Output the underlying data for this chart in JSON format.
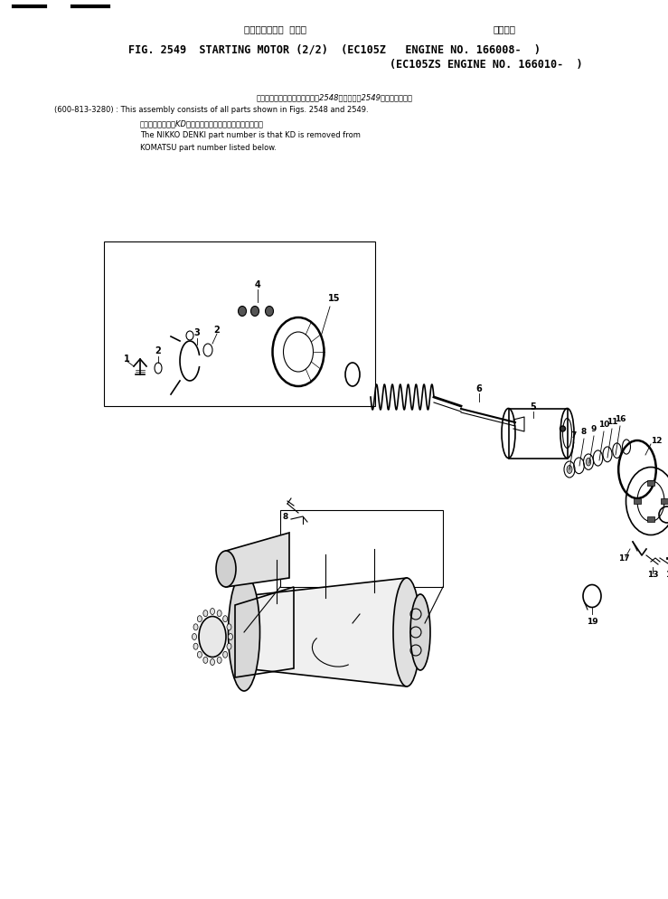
{
  "title_japanese_left": "スターティング  モータ",
  "title_japanese_right": "通用号機",
  "title_line1": "FIG. 2549  STARTING MOTOR (2/2)  (EC105Z   ENGINE NO. 166008-  )",
  "title_line2": "                                               (EC105ZS ENGINE NO. 166010-  )",
  "note1_jp": "このアセンブリの構成部品は第2548図および第2549図を含みます。",
  "note1_code": "(600-813-3280)",
  "note1_en": ": This assembly consists of all parts shown in Figs. 2548 and 2549.",
  "note2_jp": "品番のメーカ記号KDを除いたものが日産電機の品番です。",
  "note2_en1": "The NIKKO DENKI part number is that KD is removed from",
  "note2_en2": "KOMATSU part number listed below.",
  "bg_color": "#ffffff"
}
